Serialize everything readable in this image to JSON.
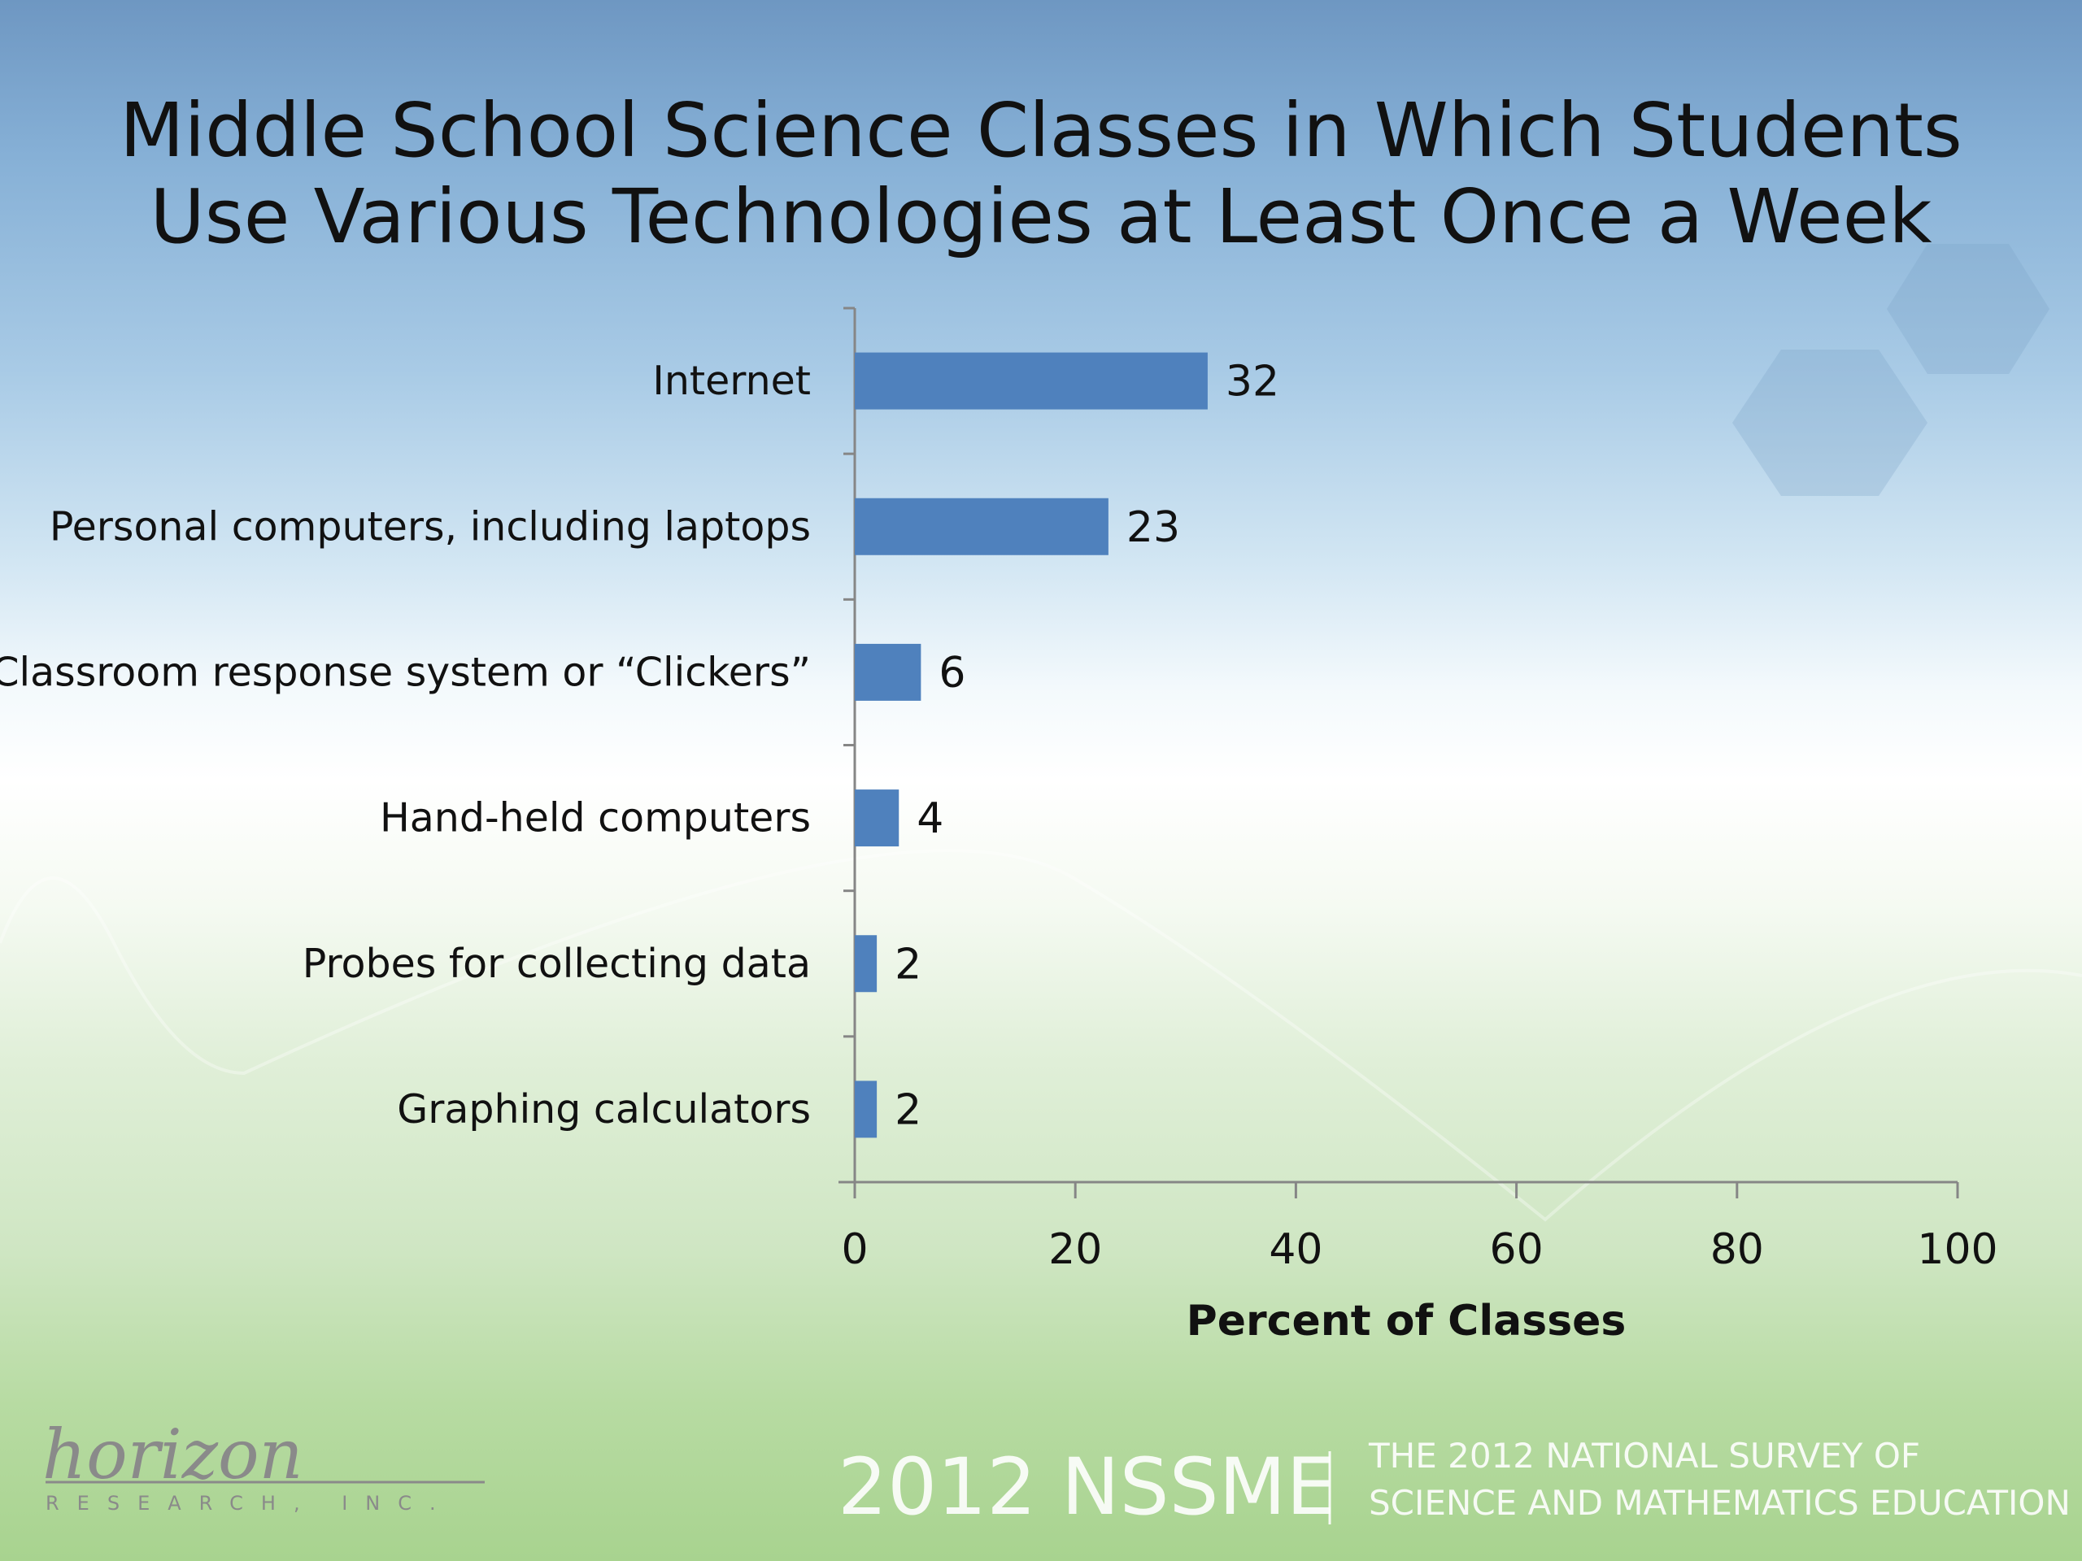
{
  "chart_data": {
    "type": "bar",
    "orientation": "horizontal",
    "title": "Middle School Science Classes in Which Students Use Various Technologies at Least Once a Week",
    "title_lines": [
      "Middle School Science Classes in Which Students",
      "Use Various Technologies at Least Once a Week"
    ],
    "categories": [
      "Internet",
      "Personal computers, including laptops",
      "Classroom response system or “Clickers”",
      "Hand-held computers",
      "Probes for collecting data",
      "Graphing calculators"
    ],
    "values": [
      32,
      23,
      6,
      4,
      2,
      2
    ],
    "xlabel": "Percent of Classes",
    "ylabel": "",
    "xlim": [
      0,
      100
    ],
    "xticks": [
      "0",
      "20",
      "40",
      "60",
      "80",
      "100"
    ],
    "grid": false,
    "legend": "none",
    "bar_color": "#4f81bd"
  },
  "footer": {
    "logo_script": "horizon",
    "logo_sub": "RESEARCH, INC.",
    "nssme": "2012 NSSME",
    "survey_line1": "THE 2012 NATIONAL SURVEY OF",
    "survey_line2": "SCIENCE AND MATHEMATICS EDUCATION"
  }
}
